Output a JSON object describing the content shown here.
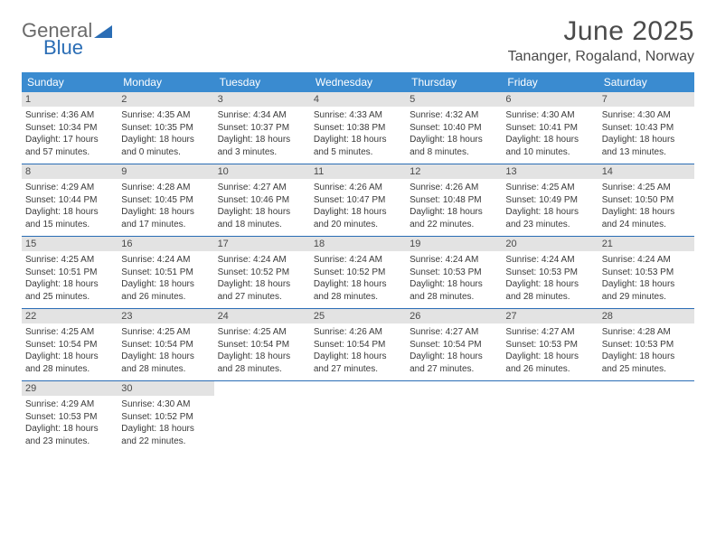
{
  "colors": {
    "header_bg": "#3a8bd0",
    "daynum_bg": "#e3e3e3",
    "week_border": "#2a6db5",
    "text": "#4a4a4a",
    "logo_gray": "#6a6a6a",
    "logo_blue": "#2a6db5"
  },
  "logo": {
    "line1": "General",
    "line2": "Blue"
  },
  "title": "June 2025",
  "location": "Tananger, Rogaland, Norway",
  "day_labels": [
    "Sunday",
    "Monday",
    "Tuesday",
    "Wednesday",
    "Thursday",
    "Friday",
    "Saturday"
  ],
  "weeks": [
    [
      {
        "day": "1",
        "sunrise": "4:36 AM",
        "sunset": "10:34 PM",
        "daylight": "17 hours and 57 minutes."
      },
      {
        "day": "2",
        "sunrise": "4:35 AM",
        "sunset": "10:35 PM",
        "daylight": "18 hours and 0 minutes."
      },
      {
        "day": "3",
        "sunrise": "4:34 AM",
        "sunset": "10:37 PM",
        "daylight": "18 hours and 3 minutes."
      },
      {
        "day": "4",
        "sunrise": "4:33 AM",
        "sunset": "10:38 PM",
        "daylight": "18 hours and 5 minutes."
      },
      {
        "day": "5",
        "sunrise": "4:32 AM",
        "sunset": "10:40 PM",
        "daylight": "18 hours and 8 minutes."
      },
      {
        "day": "6",
        "sunrise": "4:30 AM",
        "sunset": "10:41 PM",
        "daylight": "18 hours and 10 minutes."
      },
      {
        "day": "7",
        "sunrise": "4:30 AM",
        "sunset": "10:43 PM",
        "daylight": "18 hours and 13 minutes."
      }
    ],
    [
      {
        "day": "8",
        "sunrise": "4:29 AM",
        "sunset": "10:44 PM",
        "daylight": "18 hours and 15 minutes."
      },
      {
        "day": "9",
        "sunrise": "4:28 AM",
        "sunset": "10:45 PM",
        "daylight": "18 hours and 17 minutes."
      },
      {
        "day": "10",
        "sunrise": "4:27 AM",
        "sunset": "10:46 PM",
        "daylight": "18 hours and 18 minutes."
      },
      {
        "day": "11",
        "sunrise": "4:26 AM",
        "sunset": "10:47 PM",
        "daylight": "18 hours and 20 minutes."
      },
      {
        "day": "12",
        "sunrise": "4:26 AM",
        "sunset": "10:48 PM",
        "daylight": "18 hours and 22 minutes."
      },
      {
        "day": "13",
        "sunrise": "4:25 AM",
        "sunset": "10:49 PM",
        "daylight": "18 hours and 23 minutes."
      },
      {
        "day": "14",
        "sunrise": "4:25 AM",
        "sunset": "10:50 PM",
        "daylight": "18 hours and 24 minutes."
      }
    ],
    [
      {
        "day": "15",
        "sunrise": "4:25 AM",
        "sunset": "10:51 PM",
        "daylight": "18 hours and 25 minutes."
      },
      {
        "day": "16",
        "sunrise": "4:24 AM",
        "sunset": "10:51 PM",
        "daylight": "18 hours and 26 minutes."
      },
      {
        "day": "17",
        "sunrise": "4:24 AM",
        "sunset": "10:52 PM",
        "daylight": "18 hours and 27 minutes."
      },
      {
        "day": "18",
        "sunrise": "4:24 AM",
        "sunset": "10:52 PM",
        "daylight": "18 hours and 28 minutes."
      },
      {
        "day": "19",
        "sunrise": "4:24 AM",
        "sunset": "10:53 PM",
        "daylight": "18 hours and 28 minutes."
      },
      {
        "day": "20",
        "sunrise": "4:24 AM",
        "sunset": "10:53 PM",
        "daylight": "18 hours and 28 minutes."
      },
      {
        "day": "21",
        "sunrise": "4:24 AM",
        "sunset": "10:53 PM",
        "daylight": "18 hours and 29 minutes."
      }
    ],
    [
      {
        "day": "22",
        "sunrise": "4:25 AM",
        "sunset": "10:54 PM",
        "daylight": "18 hours and 28 minutes."
      },
      {
        "day": "23",
        "sunrise": "4:25 AM",
        "sunset": "10:54 PM",
        "daylight": "18 hours and 28 minutes."
      },
      {
        "day": "24",
        "sunrise": "4:25 AM",
        "sunset": "10:54 PM",
        "daylight": "18 hours and 28 minutes."
      },
      {
        "day": "25",
        "sunrise": "4:26 AM",
        "sunset": "10:54 PM",
        "daylight": "18 hours and 27 minutes."
      },
      {
        "day": "26",
        "sunrise": "4:27 AM",
        "sunset": "10:54 PM",
        "daylight": "18 hours and 27 minutes."
      },
      {
        "day": "27",
        "sunrise": "4:27 AM",
        "sunset": "10:53 PM",
        "daylight": "18 hours and 26 minutes."
      },
      {
        "day": "28",
        "sunrise": "4:28 AM",
        "sunset": "10:53 PM",
        "daylight": "18 hours and 25 minutes."
      }
    ],
    [
      {
        "day": "29",
        "sunrise": "4:29 AM",
        "sunset": "10:53 PM",
        "daylight": "18 hours and 23 minutes."
      },
      {
        "day": "30",
        "sunrise": "4:30 AM",
        "sunset": "10:52 PM",
        "daylight": "18 hours and 22 minutes."
      },
      null,
      null,
      null,
      null,
      null
    ]
  ],
  "labels": {
    "sunrise_prefix": "Sunrise: ",
    "sunset_prefix": "Sunset: ",
    "daylight_prefix": "Daylight: "
  }
}
